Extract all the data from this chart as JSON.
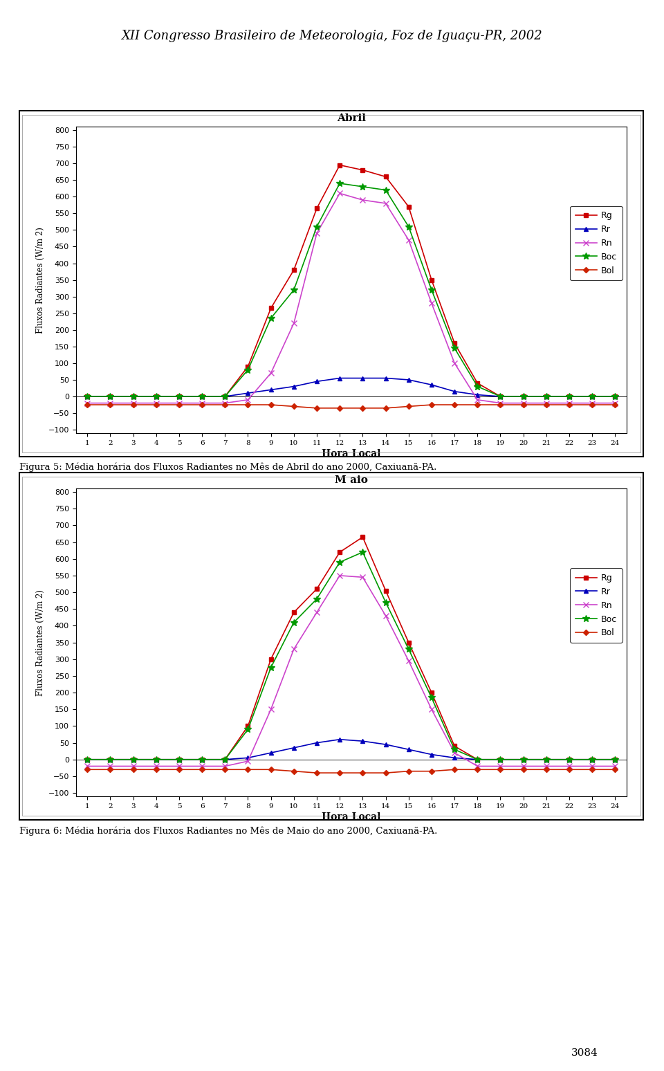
{
  "page_title": "XII Congresso Brasileiro de Meteorologia, Foz de Iguaçu-PR, 2002",
  "page_number": "3084",
  "chart1": {
    "title": "Abril",
    "xlabel": "Hora Local",
    "ylabel": "Fluxos Radiantes (W/m 2)",
    "ylim": [
      -100,
      800
    ],
    "yticks": [
      -100,
      -50,
      0,
      50,
      100,
      150,
      200,
      250,
      300,
      350,
      400,
      450,
      500,
      550,
      600,
      650,
      700,
      750,
      800
    ],
    "hours": [
      1,
      2,
      3,
      4,
      5,
      6,
      7,
      8,
      9,
      10,
      11,
      12,
      13,
      14,
      15,
      16,
      17,
      18,
      19,
      20,
      21,
      22,
      23,
      24
    ],
    "Rg": [
      0,
      0,
      0,
      0,
      0,
      0,
      0,
      90,
      265,
      380,
      565,
      695,
      680,
      660,
      570,
      350,
      160,
      40,
      0,
      0,
      0,
      0,
      0,
      0
    ],
    "Rr": [
      0,
      0,
      0,
      0,
      0,
      0,
      0,
      10,
      20,
      30,
      45,
      55,
      55,
      55,
      50,
      35,
      15,
      5,
      0,
      0,
      0,
      0,
      0,
      0
    ],
    "Rn": [
      -20,
      -20,
      -20,
      -20,
      -20,
      -20,
      -20,
      -10,
      70,
      220,
      490,
      610,
      590,
      580,
      470,
      280,
      100,
      -10,
      -20,
      -20,
      -20,
      -20,
      -20,
      -20
    ],
    "Boc": [
      0,
      0,
      0,
      0,
      0,
      0,
      0,
      80,
      235,
      320,
      510,
      640,
      630,
      620,
      510,
      320,
      145,
      30,
      0,
      0,
      0,
      0,
      0,
      0
    ],
    "Bol": [
      -25,
      -25,
      -25,
      -25,
      -25,
      -25,
      -25,
      -25,
      -25,
      -30,
      -35,
      -35,
      -35,
      -35,
      -30,
      -25,
      -25,
      -25,
      -25,
      -25,
      -25,
      -25,
      -25,
      -25
    ]
  },
  "chart1_caption": "Figura 5: Média horária dos Fluxos Radiantes no Mês de Abril do ano 2000, Caxiuanã-PA.",
  "chart2": {
    "title": "M aio",
    "xlabel": "Hora Local",
    "ylabel": "Fluxos Radiantes (W/m 2)",
    "ylim": [
      -100,
      800
    ],
    "yticks": [
      -100,
      -50,
      0,
      50,
      100,
      150,
      200,
      250,
      300,
      350,
      400,
      450,
      500,
      550,
      600,
      650,
      700,
      750,
      800
    ],
    "hours": [
      1,
      2,
      3,
      4,
      5,
      6,
      7,
      8,
      9,
      10,
      11,
      12,
      13,
      14,
      15,
      16,
      17,
      18,
      19,
      20,
      21,
      22,
      23,
      24
    ],
    "Rg": [
      0,
      0,
      0,
      0,
      0,
      0,
      0,
      100,
      300,
      440,
      510,
      620,
      665,
      505,
      350,
      200,
      40,
      0,
      0,
      0,
      0,
      0,
      0,
      0
    ],
    "Rr": [
      0,
      0,
      0,
      0,
      0,
      0,
      0,
      5,
      20,
      35,
      50,
      60,
      55,
      45,
      30,
      15,
      5,
      0,
      0,
      0,
      0,
      0,
      0,
      0
    ],
    "Rn": [
      -20,
      -20,
      -20,
      -20,
      -20,
      -20,
      -20,
      -5,
      150,
      330,
      440,
      550,
      545,
      430,
      295,
      150,
      20,
      -20,
      -20,
      -20,
      -20,
      -20,
      -20,
      -20
    ],
    "Boc": [
      0,
      0,
      0,
      0,
      0,
      0,
      0,
      90,
      275,
      410,
      480,
      590,
      620,
      470,
      330,
      185,
      30,
      0,
      0,
      0,
      0,
      0,
      0,
      0
    ],
    "Bol": [
      -30,
      -30,
      -30,
      -30,
      -30,
      -30,
      -30,
      -30,
      -30,
      -35,
      -40,
      -40,
      -40,
      -40,
      -35,
      -35,
      -30,
      -30,
      -30,
      -30,
      -30,
      -30,
      -30,
      -30
    ]
  },
  "chart2_caption": "Figura 6: Média horária dos Fluxos Radiantes no Mês de Maio do ano 2000, Caxiuanã-PA.",
  "colors": {
    "Rg": "#cc0000",
    "Rr": "#0000bb",
    "Rn": "#cc44cc",
    "Boc": "#009900",
    "Bol": "#cc2200"
  },
  "markers": {
    "Rg": "s",
    "Rr": "^",
    "Rn": "x",
    "Boc": "*",
    "Bol": "D"
  },
  "marker_sizes": {
    "Rg": 5,
    "Rr": 5,
    "Rn": 6,
    "Boc": 7,
    "Bol": 4
  }
}
